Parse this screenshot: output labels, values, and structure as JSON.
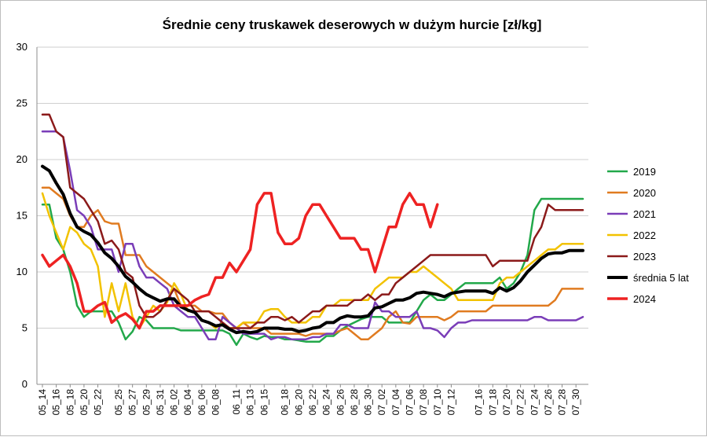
{
  "chart_data": {
    "type": "line",
    "title": "Średnie ceny truskawek deserowych w dużym hurcie [zł/kg]",
    "xlabel": "",
    "ylabel": "",
    "ylim": [
      0,
      30
    ],
    "yticks": [
      "0",
      "5",
      "10",
      "15",
      "20",
      "25",
      "30"
    ],
    "grid": "horizontal",
    "legend_position": "right",
    "categories": [
      "05_14",
      "05_15",
      "05_16",
      "05_17",
      "05_18",
      "05_19",
      "05_20",
      "05_21",
      "05_22",
      "05_23",
      "05_24",
      "05_25",
      "05_26",
      "05_27",
      "05_28",
      "05_29",
      "05_30",
      "05_31",
      "06_01",
      "06_02",
      "06_03",
      "06_04",
      "06_05",
      "06_06",
      "06_07",
      "06_08",
      "06_09",
      "06_10",
      "06_11",
      "06_12",
      "06_13",
      "06_14",
      "06_15",
      "06_16",
      "06_17",
      "06_18",
      "06_19",
      "06_20",
      "06_21",
      "06_22",
      "06_23",
      "06_24",
      "06_25",
      "06_26",
      "06_27",
      "06_28",
      "06_29",
      "06_30",
      "07_01",
      "07_02",
      "07_03",
      "07_04",
      "07_05",
      "07_06",
      "07_07",
      "07_08",
      "07_09",
      "07_10",
      "07_11",
      "07_12",
      "07_13",
      "07_14",
      "07_15",
      "07_16",
      "07_17",
      "07_18",
      "07_19",
      "07_20",
      "07_21",
      "07_22",
      "07_23",
      "07_24",
      "07_25",
      "07_26",
      "07_27",
      "07_28",
      "07_29",
      "07_30",
      "07_31"
    ],
    "tick_labels": [
      "05_14",
      "05_16",
      "05_18",
      "05_20",
      "05_22",
      "05_25",
      "05_27",
      "05_29",
      "05_31",
      "06_02",
      "06_04",
      "06_06",
      "06_08",
      "06_11",
      "06_13",
      "06_15",
      "06_18",
      "06_20",
      "06_22",
      "06_24",
      "06_26",
      "06_28",
      "06_30",
      "07_02",
      "07_04",
      "07_06",
      "07_08",
      "07_10",
      "07_12",
      "07_16",
      "07_18",
      "07_20",
      "07_22",
      "07_24",
      "07_26",
      "07_28",
      "07_30"
    ],
    "series": [
      {
        "name": "2019",
        "color": "#22a84a",
        "width": 2.5,
        "values": [
          16,
          16,
          13,
          12,
          10,
          7,
          6,
          6.5,
          6.5,
          6.5,
          6.5,
          5.5,
          4,
          4.7,
          6,
          5.7,
          5,
          5,
          5,
          5,
          4.8,
          4.8,
          4.8,
          4.8,
          4.8,
          4.8,
          4.8,
          4.5,
          3.5,
          4.5,
          4.2,
          4,
          4.3,
          4.2,
          4.2,
          4,
          4,
          3.9,
          3.8,
          3.8,
          3.8,
          4.3,
          4.3,
          4.8,
          5.2,
          5.5,
          5.8,
          6,
          6,
          6,
          5.5,
          5.5,
          5.5,
          5.5,
          6.5,
          7.5,
          8,
          7.5,
          7.5,
          8,
          8.5,
          9,
          9,
          9,
          9,
          9,
          9.5,
          8.5,
          9,
          10,
          11.5,
          15.5,
          16.5,
          16.5,
          16.5,
          16.5,
          16.5,
          16.5,
          16.5
        ]
      },
      {
        "name": "2020",
        "color": "#e07b20",
        "width": 2.5,
        "values": [
          17.5,
          17.5,
          17,
          16.5,
          15,
          14,
          14,
          15,
          15.5,
          14.5,
          14.3,
          14.3,
          11.5,
          11.5,
          11.5,
          10.5,
          10,
          9.5,
          9,
          8.5,
          7,
          7,
          7,
          6.5,
          6.5,
          6.3,
          6.3,
          5.5,
          5,
          5.5,
          5,
          5,
          5,
          4.5,
          4.5,
          4.5,
          4.5,
          4.5,
          4.3,
          4.5,
          4.5,
          4.5,
          4.5,
          4.8,
          5,
          4.5,
          4,
          4,
          4.5,
          5,
          6,
          6.5,
          5.5,
          5.4,
          6,
          6,
          6,
          6,
          5.7,
          6,
          6.5,
          6.5,
          6.5,
          6.5,
          6.5,
          7,
          7,
          7,
          7,
          7,
          7,
          7,
          7,
          7,
          7.5,
          8.5,
          8.5,
          8.5,
          8.5
        ]
      },
      {
        "name": "2021",
        "color": "#7a3db8",
        "width": 2.5,
        "values": [
          22.5,
          22.5,
          22.5,
          22,
          19,
          15.5,
          15,
          14,
          12,
          12,
          12,
          10,
          12.5,
          12.5,
          10.5,
          9.5,
          9.5,
          9,
          8.5,
          7,
          6.5,
          6,
          6,
          5,
          4,
          4,
          6,
          5.5,
          5,
          4.5,
          4.5,
          4.5,
          4.5,
          4,
          4.2,
          4.2,
          4,
          4,
          4,
          4.2,
          4.2,
          4.5,
          4.5,
          5.3,
          5.3,
          5,
          5,
          5,
          7.3,
          6.5,
          6.5,
          6,
          6,
          6,
          6.5,
          5,
          5,
          4.8,
          4.2,
          5,
          5.5,
          5.5,
          5.7,
          5.7,
          5.7,
          5.7,
          5.7,
          5.7,
          5.7,
          5.7,
          5.7,
          6,
          6,
          5.7,
          5.7,
          5.7,
          5.7,
          5.7,
          6
        ]
      },
      {
        "name": "2022",
        "color": "#f2c200",
        "width": 2.5,
        "values": [
          17,
          15,
          13.5,
          12,
          14,
          13.5,
          12.5,
          12,
          10.5,
          6,
          9,
          6.5,
          9,
          6,
          5,
          6,
          7,
          6.5,
          7.3,
          9,
          8,
          6.5,
          6.5,
          5.7,
          5.5,
          5,
          5.5,
          5,
          5,
          5.5,
          5.5,
          5.5,
          6.5,
          6.7,
          6.7,
          6,
          5.5,
          5.5,
          5.5,
          6,
          6,
          7,
          7,
          7.5,
          7.5,
          7.5,
          7.5,
          7.5,
          8.5,
          9,
          9.5,
          9.5,
          9.5,
          10,
          10,
          10.5,
          10,
          9.5,
          9,
          8.5,
          7.5,
          7.5,
          7.5,
          7.5,
          7.5,
          7.5,
          9,
          9.5,
          9.5,
          10,
          10.5,
          11,
          11.5,
          12,
          12,
          12.5,
          12.5,
          12.5,
          12.5
        ]
      },
      {
        "name": "2023",
        "color": "#8b1a1a",
        "width": 2.5,
        "values": [
          24,
          24,
          22.5,
          22,
          17.5,
          17,
          16.5,
          15.5,
          14.5,
          12.5,
          12.8,
          12,
          10,
          9.5,
          7,
          6,
          6,
          6.5,
          7.5,
          8.5,
          8,
          7.5,
          6.5,
          6.5,
          6.5,
          6,
          5.5,
          5,
          5,
          5,
          5,
          5.5,
          5.5,
          6,
          6,
          5.7,
          6,
          5.5,
          6,
          6.5,
          6.5,
          7,
          7,
          7,
          7,
          7.5,
          7.5,
          8,
          7.5,
          8,
          8,
          9,
          9.5,
          10,
          10.5,
          11,
          11.5,
          11.5,
          11.5,
          11.5,
          11.5,
          11.5,
          11.5,
          11.5,
          11.5,
          10.5,
          11,
          11,
          11,
          11,
          11,
          13,
          14,
          16,
          15.5,
          15.5,
          15.5,
          15.5,
          15.5
        ]
      },
      {
        "name": "średnia 5 lat",
        "color": "#000000",
        "width": 4,
        "values": [
          19.4,
          19,
          17.9,
          16.9,
          15.2,
          14,
          13.6,
          13.3,
          12.6,
          11.7,
          11.2,
          10.5,
          9.6,
          9.1,
          8.5,
          8,
          7.7,
          7.4,
          7.6,
          7.6,
          6.9,
          6.6,
          6.4,
          5.7,
          5.5,
          5.2,
          5.3,
          4.9,
          4.6,
          4.7,
          4.6,
          4.7,
          5,
          5,
          5,
          4.9,
          4.9,
          4.7,
          4.8,
          5,
          5.1,
          5.5,
          5.5,
          5.9,
          6.1,
          6,
          6,
          6.1,
          6.8,
          6.9,
          7.2,
          7.5,
          7.5,
          7.7,
          8.1,
          8.2,
          8.1,
          8,
          7.8,
          8.1,
          8.2,
          8.3,
          8.3,
          8.3,
          8.3,
          8.1,
          8.6,
          8.3,
          8.6,
          9.2,
          10,
          10.6,
          11.2,
          11.6,
          11.7,
          11.7,
          11.9,
          11.9,
          11.9
        ]
      },
      {
        "name": "2024",
        "color": "#ee2222",
        "width": 3.5,
        "values": [
          11.5,
          10.5,
          11,
          11.5,
          10.5,
          9,
          6.5,
          6.5,
          7,
          7.3,
          5.5,
          6,
          6.3,
          5.8,
          5,
          6.5,
          6.5,
          7,
          7,
          7,
          7,
          7,
          7.5,
          7.8,
          8,
          9.5,
          9.5,
          10.8,
          10,
          11,
          12,
          16,
          17,
          17,
          13.5,
          12.5,
          12.5,
          13,
          15,
          16,
          16,
          15,
          14,
          13,
          13,
          13,
          12,
          12,
          10,
          12,
          14,
          14,
          16,
          17,
          16,
          16,
          14,
          16,
          null,
          null,
          null,
          null,
          null,
          null,
          null,
          null,
          null,
          null,
          null,
          null,
          null,
          null,
          null,
          null,
          null,
          null,
          null,
          null,
          null
        ]
      }
    ]
  }
}
